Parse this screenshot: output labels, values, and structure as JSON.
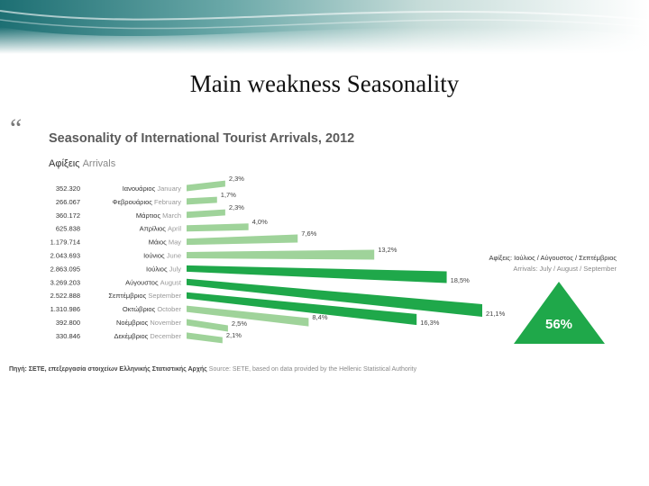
{
  "slide": {
    "title": "Main weakness Seasonality",
    "quote_mark": "“"
  },
  "chart_data": {
    "type": "bar",
    "title": "Seasonality of International Tourist Arrivals, 2012",
    "column_header": {
      "gr": "Αφίξεις",
      "en": "Arrivals"
    },
    "months": [
      {
        "gr": "Ιανουάριος",
        "en": "January"
      },
      {
        "gr": "Φεβρουάριος",
        "en": "February"
      },
      {
        "gr": "Μάρτιος",
        "en": "March"
      },
      {
        "gr": "Απρίλιος",
        "en": "April"
      },
      {
        "gr": "Μάιος",
        "en": "May"
      },
      {
        "gr": "Ιούνιος",
        "en": "June"
      },
      {
        "gr": "Ιούλιος",
        "en": "July"
      },
      {
        "gr": "Αύγουστος",
        "en": "August"
      },
      {
        "gr": "Σεπτέμβριος",
        "en": "September"
      },
      {
        "gr": "Οκτώβριος",
        "en": "October"
      },
      {
        "gr": "Νοέμβριος",
        "en": "November"
      },
      {
        "gr": "Δεκέμβριος",
        "en": "December"
      }
    ],
    "arrivals": [
      "352.320",
      "266.067",
      "360.172",
      "625.838",
      "1.179.714",
      "2.043.693",
      "2.863.095",
      "3.269.203",
      "2.522.888",
      "1.310.986",
      "392.800",
      "330.846"
    ],
    "shares": [
      2.3,
      1.7,
      2.3,
      4.0,
      7.6,
      13.2,
      18.5,
      21.1,
      16.3,
      8.4,
      2.5,
      2.1
    ],
    "share_labels": [
      "2,3%",
      "1,7%",
      "2,3%",
      "4,0%",
      "7,6%",
      "13,2%",
      "18,5%",
      "21,1%",
      "16,3%",
      "8,4%",
      "2,5%",
      "2,1%"
    ],
    "highlighted": [
      false,
      false,
      false,
      false,
      false,
      false,
      true,
      true,
      true,
      false,
      false,
      false
    ],
    "summary": {
      "gr": "Αφίξεις: Ιούλιος / Αύγουστος / Σεπτέμβριος",
      "en": "Arrivals: July / August / September",
      "value": "56%"
    },
    "colors": {
      "light": "#9fd39a",
      "dark": "#1fa84a",
      "label": "#666666"
    }
  },
  "source": {
    "gr": "Πηγή: ΣΕΤΕ, επεξεργασία στοιχείων Ελληνικής Στατιστικής Αρχής",
    "en": "Source: SETE, based on data provided by the Hellenic Statistical Authority"
  }
}
